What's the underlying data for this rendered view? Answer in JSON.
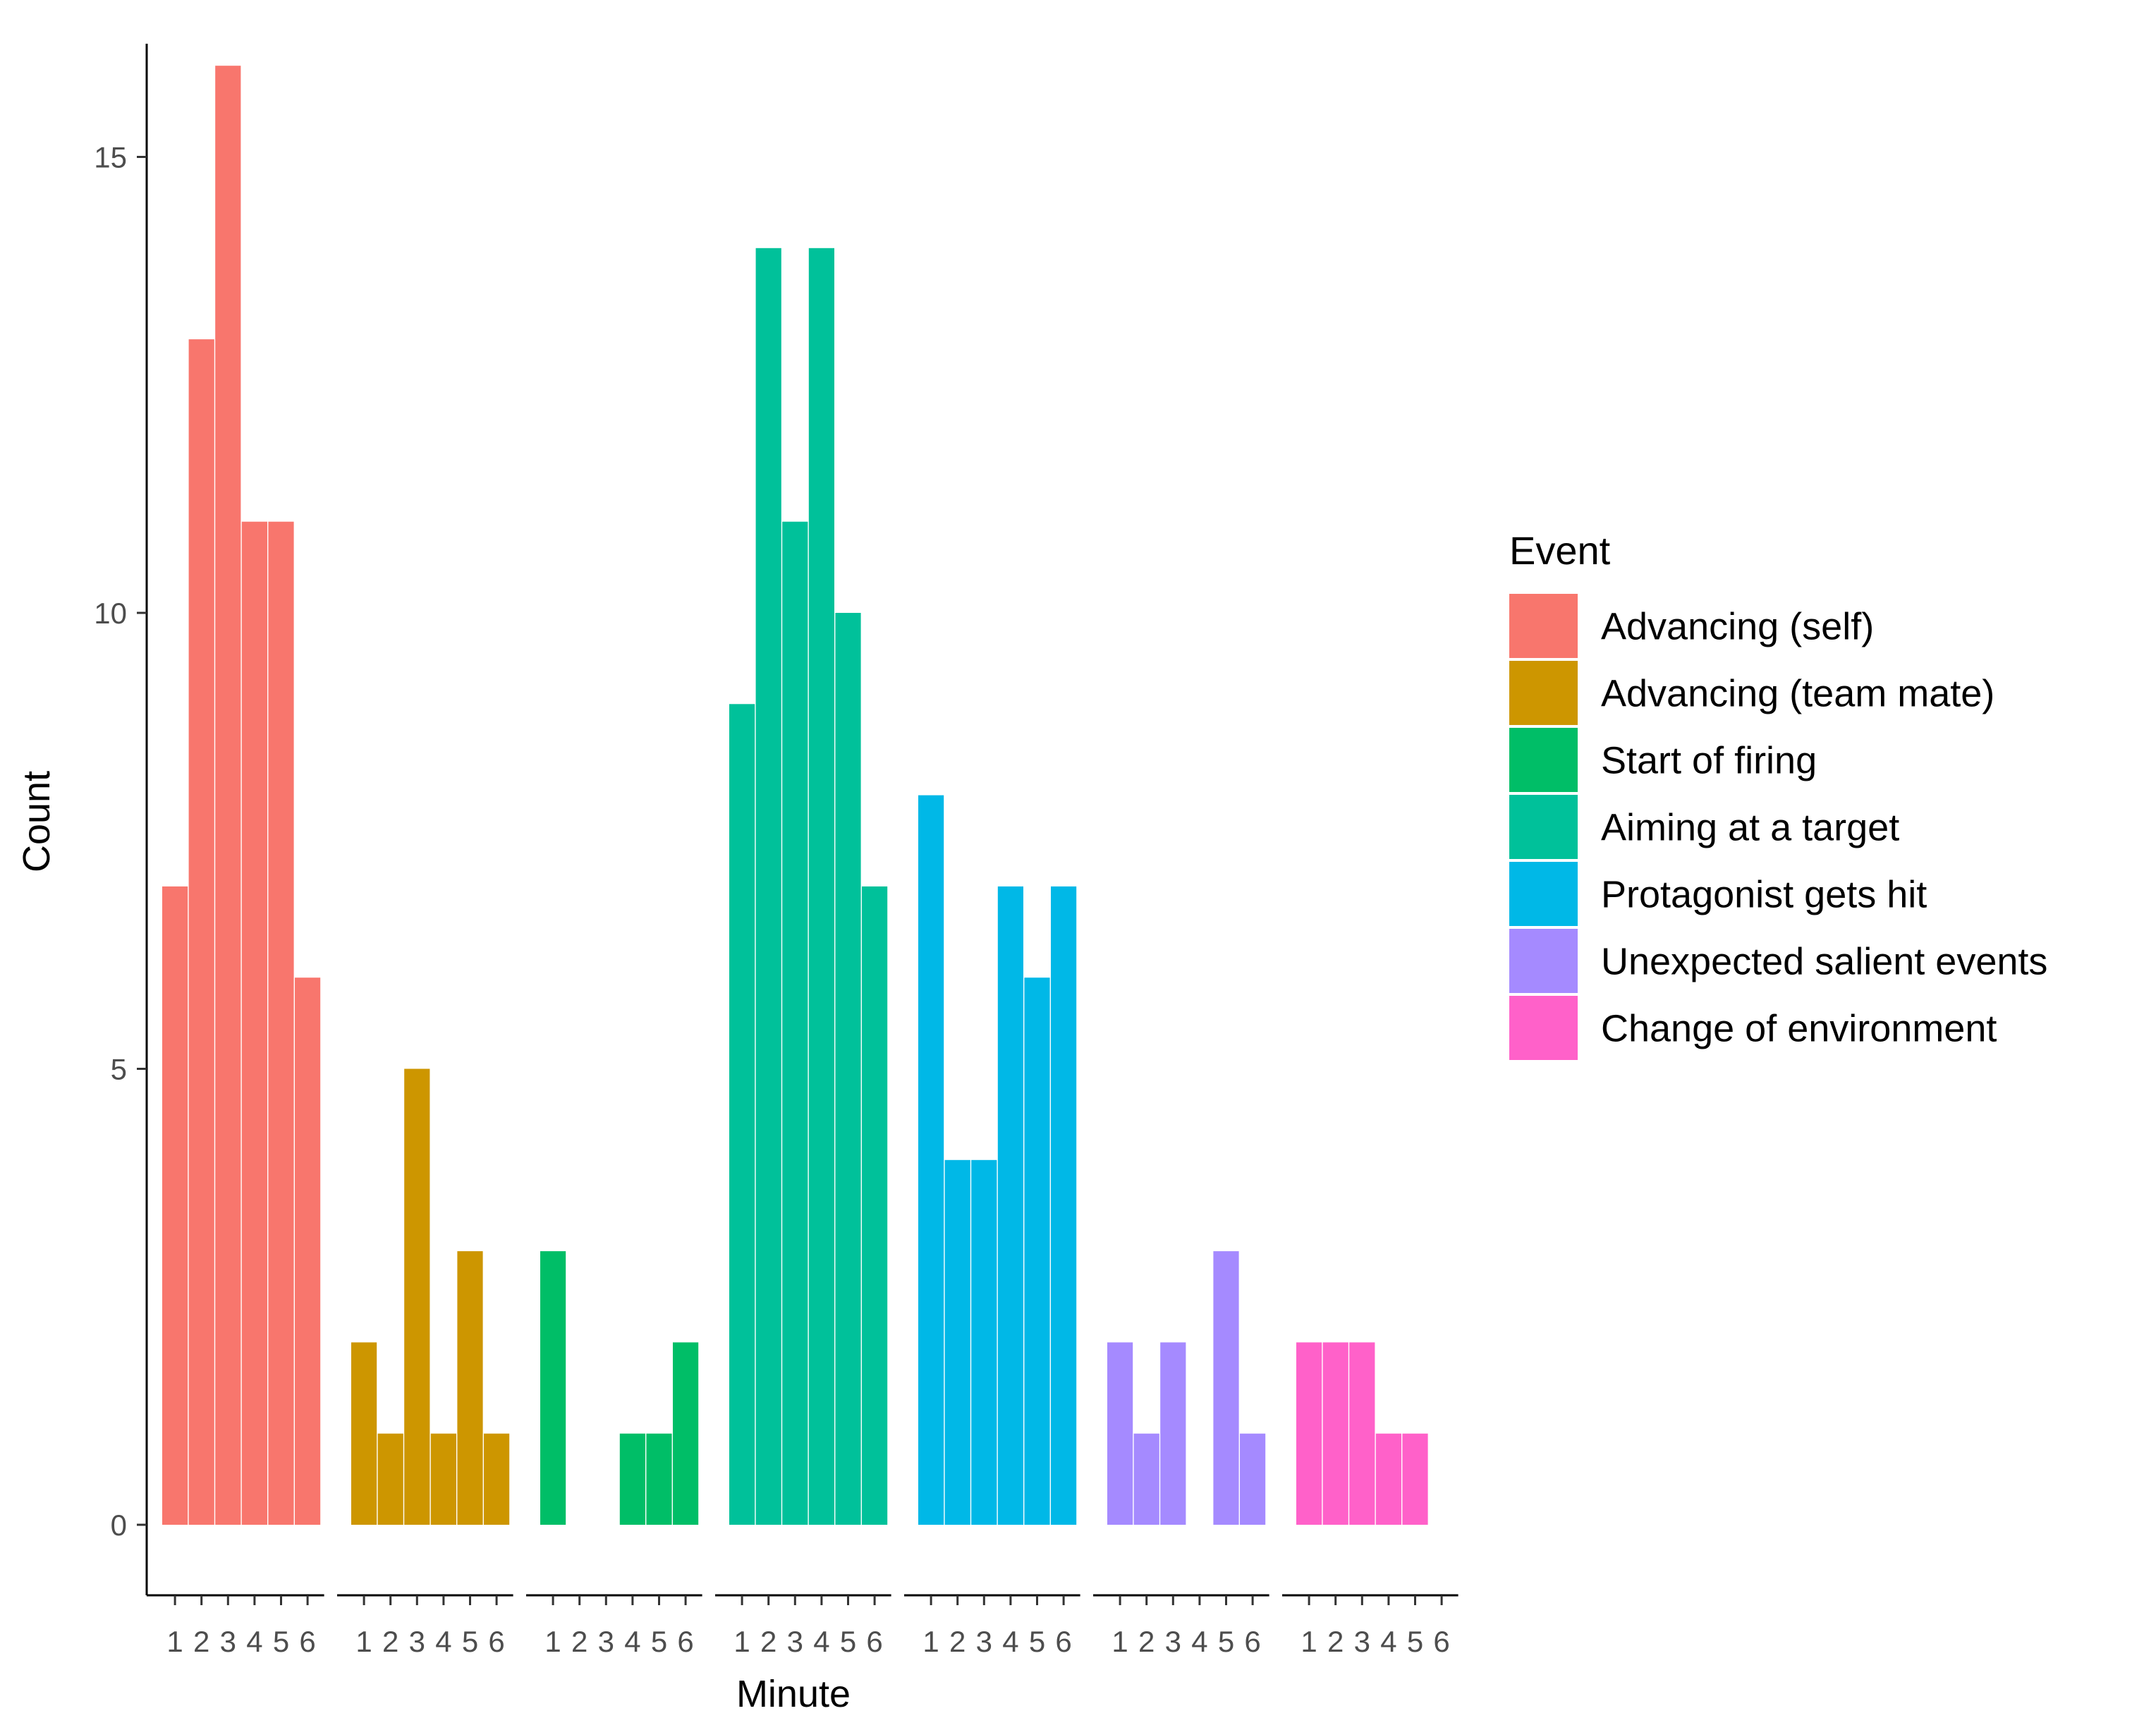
{
  "chart_data": {
    "type": "bar",
    "xlabel": "Minute",
    "ylabel": "Count",
    "ylim": [
      -0.75,
      16
    ],
    "yticks": [
      0,
      5,
      10,
      15
    ],
    "minutes": [
      "1",
      "2",
      "3",
      "4",
      "5",
      "6"
    ],
    "legend_title": "Event",
    "legend_position": "right",
    "series": [
      {
        "name": "Advancing (self)",
        "color": "#F8766D",
        "values": [
          7,
          13,
          16,
          11,
          11,
          6
        ]
      },
      {
        "name": "Advancing (team mate)",
        "color": "#CD9600",
        "values": [
          2,
          1,
          5,
          1,
          3,
          1
        ]
      },
      {
        "name": "Start of firing",
        "color": "#00BE67",
        "values": [
          3,
          0,
          0,
          1,
          1,
          2
        ]
      },
      {
        "name": "Aiming at a target",
        "color": "#00C19A",
        "values": [
          9,
          14,
          11,
          14,
          10,
          7
        ]
      },
      {
        "name": "Protagonist gets hit",
        "color": "#00B8E7",
        "values": [
          8,
          4,
          4,
          7,
          6,
          7
        ]
      },
      {
        "name": "Unexpected salient events",
        "color": "#A58AFF",
        "values": [
          2,
          1,
          2,
          0,
          3,
          1
        ]
      },
      {
        "name": "Change of environment",
        "color": "#FF61C9",
        "values": [
          2,
          2,
          2,
          1,
          1,
          0
        ]
      }
    ]
  }
}
